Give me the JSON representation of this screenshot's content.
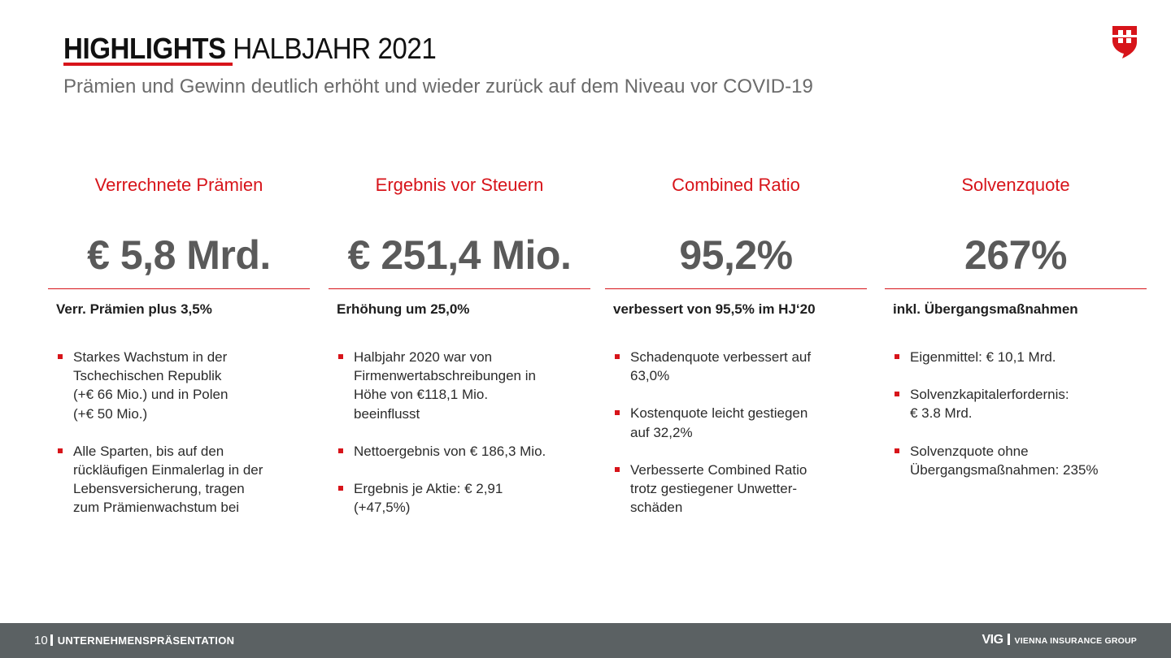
{
  "header": {
    "title_strong": "HIGHLIGHTS",
    "title_light": "HALBJAHR 2021",
    "subtitle": "Prämien und Gewinn deutlich erhöht und wieder zurück auf dem Niveau vor COVID-19",
    "logo_icon": "vig-shield-logo-icon"
  },
  "accent_color": "#d7141a",
  "columns": [
    {
      "heading": "Verrechnete Prämien",
      "value": "€ 5,8 Mrd.",
      "lead": "Verr. Prämien plus 3,5%",
      "bullets": [
        "Starkes Wachstum in der\nTschechischen Republik\n(+€ 66 Mio.) und in Polen\n(+€ 50 Mio.)",
        "Alle Sparten, bis auf den\nrückläufigen Einmalerlag in der\nLebensversicherung, tragen\nzum Prämienwachstum bei"
      ]
    },
    {
      "heading": "Ergebnis vor Steuern",
      "value": "€ 251,4 Mio.",
      "lead": "Erhöhung um 25,0%",
      "bullets": [
        "Halbjahr 2020 war von\nFirmenwertabschreibungen in\nHöhe von €118,1 Mio.\nbeeinflusst",
        "Nettoergebnis von € 186,3 Mio.",
        "Ergebnis je Aktie: € 2,91\n(+47,5%)"
      ]
    },
    {
      "heading": "Combined Ratio",
      "value": "95,2%",
      "lead": "verbessert von 95,5% im HJ‘20",
      "bullets": [
        "Schadenquote verbessert auf\n63,0%",
        "Kostenquote leicht gestiegen\nauf 32,2%",
        "Verbesserte Combined Ratio\ntrotz gestiegener Unwetter-\nschäden"
      ]
    },
    {
      "heading": "Solvenzquote",
      "value": "267%",
      "lead": "inkl. Übergangsmaßnahmen",
      "bullets": [
        "Eigenmittel: € 10,1 Mrd.",
        "Solvenzkapitalerfordernis:\n € 3.8 Mrd.",
        "Solvenzquote ohne\nÜbergangsmaßnahmen: 235%"
      ]
    }
  ],
  "footer": {
    "page_number": "10",
    "section_label": "UNTERNEHMENSPRÄSENTATION",
    "brand_short": "VIG",
    "brand_full": "VIENNA INSURANCE GROUP"
  }
}
